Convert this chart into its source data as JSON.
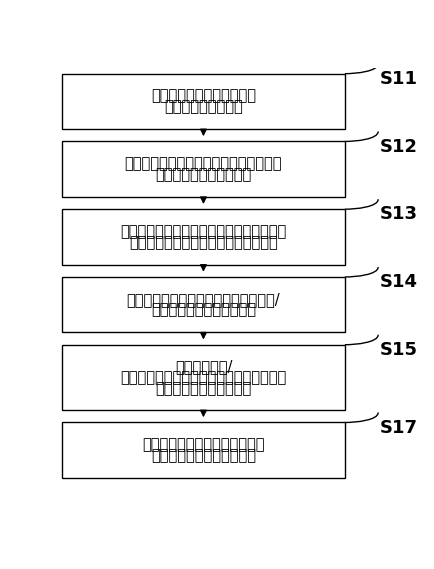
{
  "boxes": [
    {
      "id": 0,
      "lines": [
        "以配电网内各配网管理设备",
        "为节点构建通讯网络"
      ],
      "label": "S11"
    },
    {
      "id": 1,
      "lines": [
        "根据电流的特性确定各所述配网管理设备",
        "在配电网中的上下游关系"
      ],
      "label": "S12"
    },
    {
      "id": 2,
      "lines": [
        "根据监测数据的变化特性以及各配网管理设",
        "备在配电网中的位置关系生成故障报告"
      ],
      "label": "S13"
    },
    {
      "id": 3,
      "lines": [
        "根据故障报告，构建屏蔽了故障设备和/",
        "或线路后的临时配电网结构"
      ],
      "label": "S14"
    },
    {
      "id": 4,
      "lines": [
        "计算各回路和/",
        "或配电自动化终端的开关启闭状态的组合方",
        "式并生成相应的控制指令"
      ],
      "label": "S15"
    },
    {
      "id": 5,
      "lines": [
        "根据控制指令控制相应的回路和",
        "配电自动化终端的启闭状态"
      ],
      "label": "S17"
    }
  ],
  "box_color": "#ffffff",
  "box_edge_color": "#000000",
  "arrow_color": "#000000",
  "label_color": "#000000",
  "background_color": "#ffffff",
  "font_size": 10.5,
  "label_font_size": 13
}
